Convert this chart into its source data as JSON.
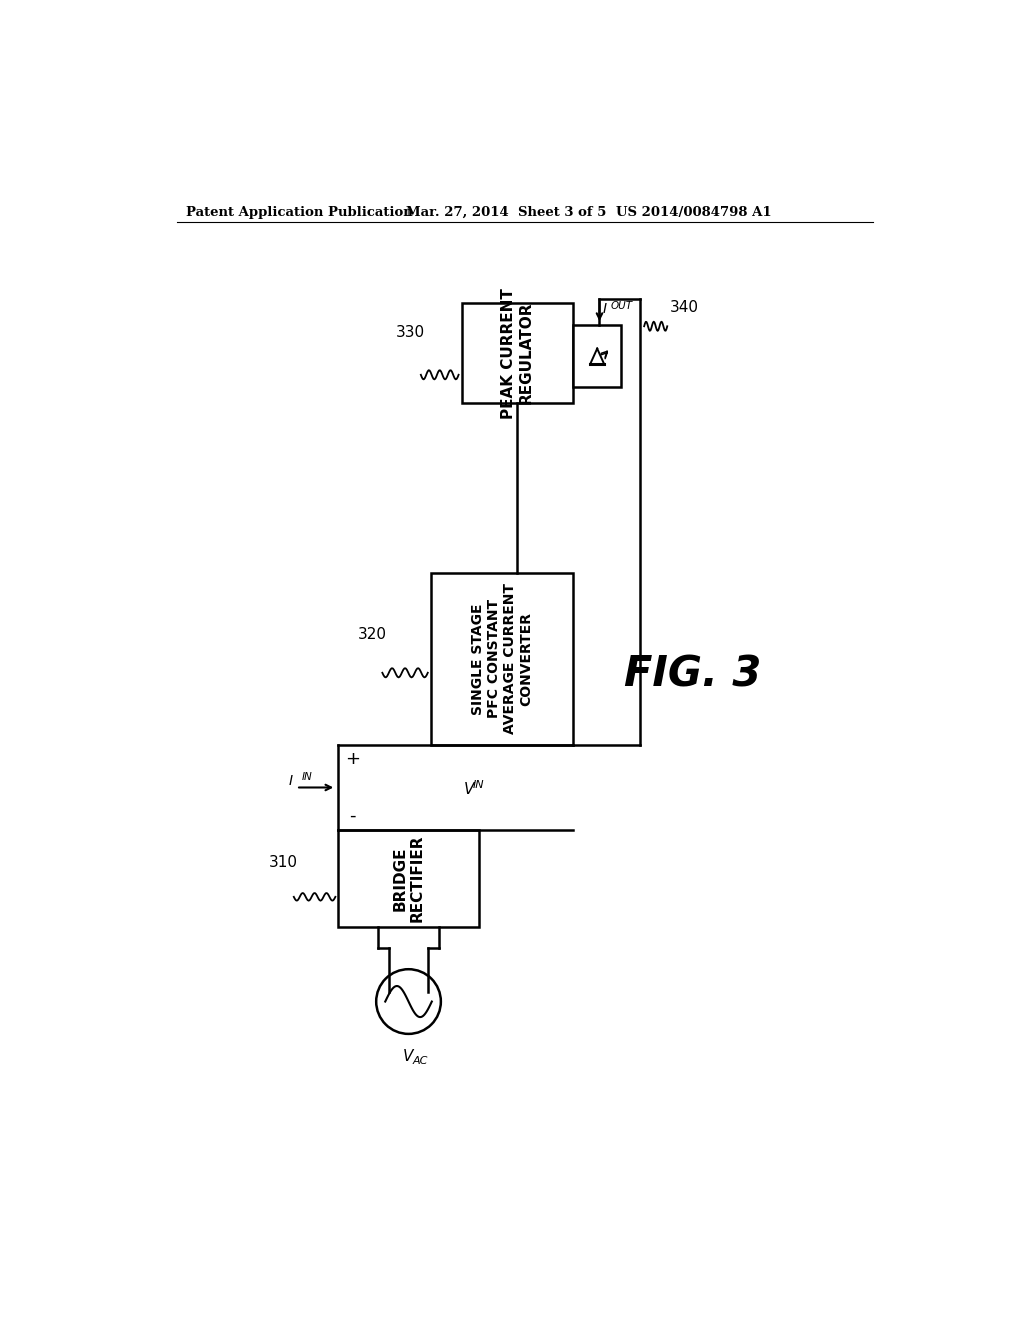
{
  "background_color": "#ffffff",
  "header_left": "Patent Application Publication",
  "header_center": "Mar. 27, 2014  Sheet 3 of 5",
  "header_right": "US 2014/0084798 A1",
  "fig_label": "FIG. 3",
  "block_330_label": "PEAK CURRENT\nREGULATOR",
  "block_330_ref": "330",
  "block_320_label": "SINGLE STAGE\nPFC CONSTANT\nAVERAGE CURRENT\nCONVERTER",
  "block_320_ref": "320",
  "block_310_label": "BRIDGE\nRECTIFIER",
  "block_310_ref": "310",
  "block_340_ref": "340",
  "I_OUT_label": "I",
  "I_OUT_sub": "OUT",
  "I_IN_label": "I",
  "I_IN_sub": "IN",
  "V_IN_label": "V",
  "V_IN_sub": "IN",
  "V_AC_label": "V",
  "V_AC_sub": "AC",
  "plus_label": "+",
  "minus_label": "-"
}
